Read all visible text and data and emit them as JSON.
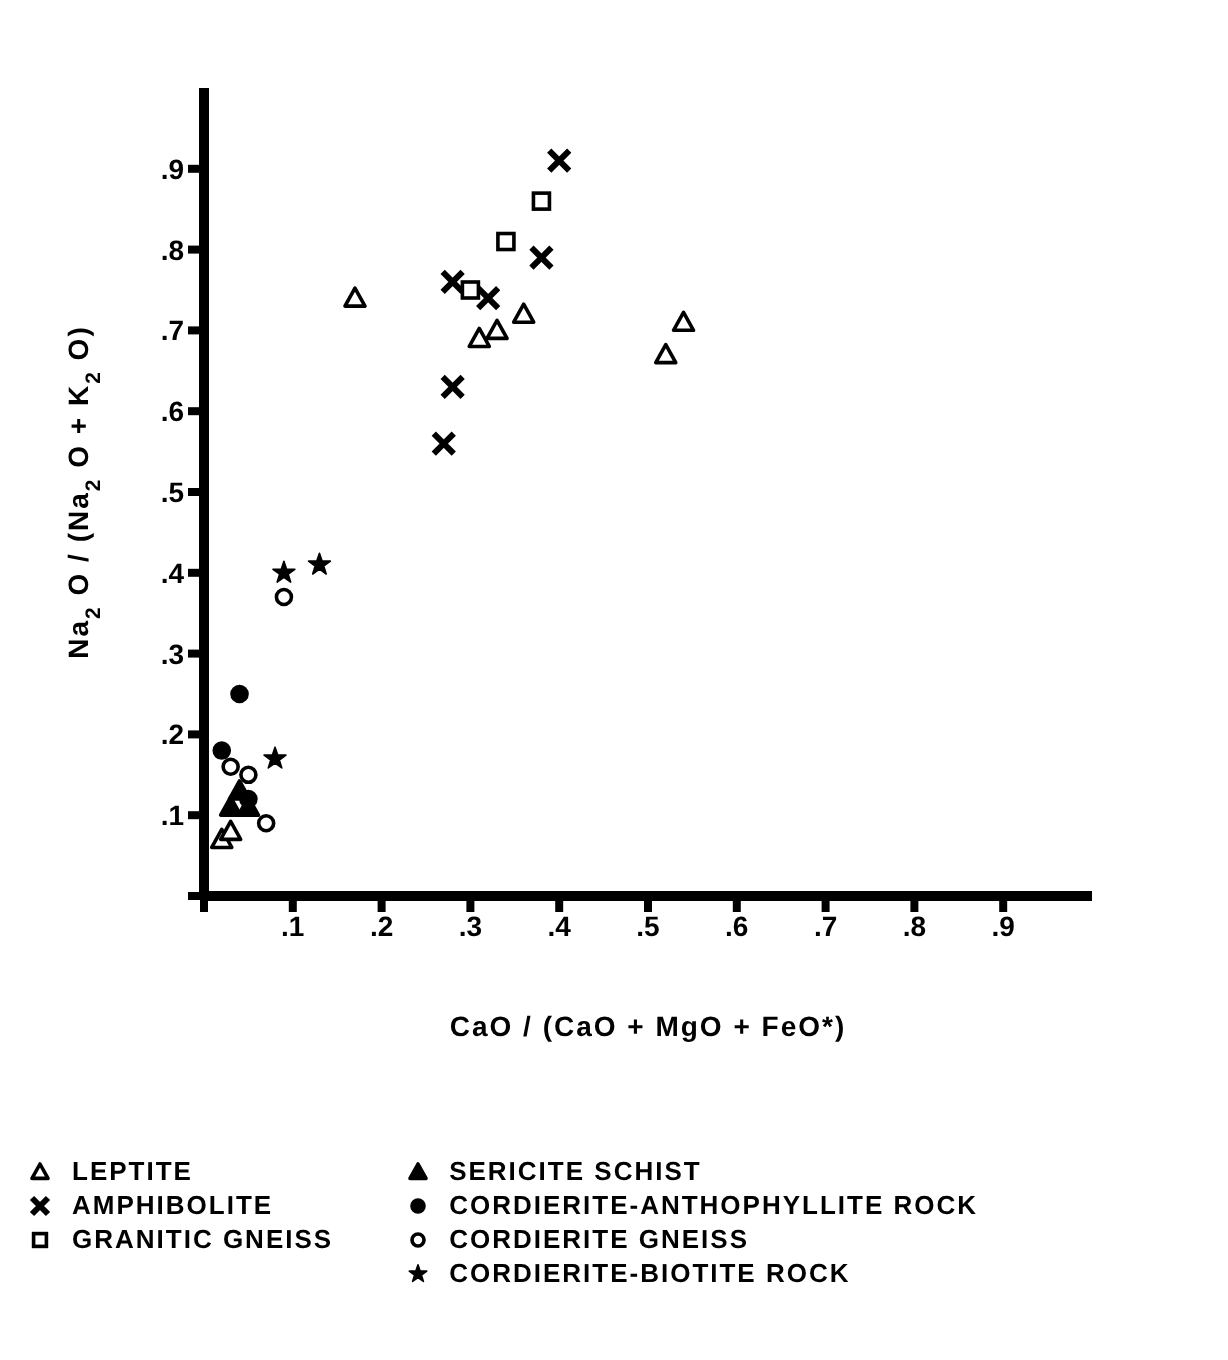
{
  "chart_data": {
    "type": "scatter",
    "xlabel": "CaO / (CaO + MgO + FeO*)",
    "ylabel": "Na$_{2}$O / (Na$_{2}$O + K$_{2}$O)",
    "xlim": [
      0,
      1
    ],
    "ylim": [
      0,
      1
    ],
    "xticks": [
      {
        "value": 0,
        "label": null
      },
      {
        "value": 0.1,
        "label": ".1"
      },
      {
        "value": 0.2,
        "label": ".2"
      },
      {
        "value": 0.3,
        "label": ".3"
      },
      {
        "value": 0.4,
        "label": ".4"
      },
      {
        "value": 0.5,
        "label": ".5"
      },
      {
        "value": 0.6,
        "label": ".6"
      },
      {
        "value": 0.7,
        "label": ".7"
      },
      {
        "value": 0.8,
        "label": ".8"
      },
      {
        "value": 0.9,
        "label": ".9"
      }
    ],
    "yticks": [
      {
        "value": 0,
        "label": null
      },
      {
        "value": 0.1,
        "label": ".1"
      },
      {
        "value": 0.2,
        "label": ".2"
      },
      {
        "value": 0.3,
        "label": ".3"
      },
      {
        "value": 0.4,
        "label": ".4"
      },
      {
        "value": 0.5,
        "label": ".5"
      },
      {
        "value": 0.6,
        "label": ".6"
      },
      {
        "value": 0.7,
        "label": ".7"
      },
      {
        "value": 0.8,
        "label": ".8"
      },
      {
        "value": 0.9,
        "label": ".9"
      }
    ],
    "grid": false,
    "legend": "bottom",
    "series": [
      {
        "name": "LEPTITE",
        "color": "#ffffff",
        "marker": "triangle",
        "x": [
          0.17,
          0.31,
          0.33,
          0.36,
          0.52,
          0.54,
          0.02,
          0.03
        ],
        "values": [
          0.74,
          0.69,
          0.7,
          0.72,
          0.67,
          0.71,
          0.07,
          0.08
        ]
      },
      {
        "name": "AMPHIBOLITE",
        "color": "#000000",
        "marker": "cross",
        "x": [
          0.4,
          0.38,
          0.28,
          0.32,
          0.28,
          0.27
        ],
        "values": [
          0.91,
          0.79,
          0.76,
          0.74,
          0.63,
          0.56
        ]
      },
      {
        "name": "GRANITIC GNEISS",
        "color": "#ffffff",
        "marker": "square",
        "x": [
          0.38,
          0.34,
          0.3
        ],
        "values": [
          0.86,
          0.81,
          0.75
        ]
      },
      {
        "name": "SERICITE SCHIST",
        "color": "#000000",
        "marker": "triangle",
        "x": [
          0.03,
          0.04,
          0.05
        ],
        "values": [
          0.11,
          0.13,
          0.11
        ]
      },
      {
        "name": "CORDIERITE-ANTHOPHYLLITE ROCK",
        "color": "#000000",
        "marker": "circle",
        "x": [
          0.02,
          0.04,
          0.05
        ],
        "values": [
          0.18,
          0.25,
          0.12
        ]
      },
      {
        "name": "CORDIERITE GNEISS",
        "color": "#ffffff",
        "marker": "circle",
        "x": [
          0.09,
          0.03,
          0.05,
          0.07
        ],
        "values": [
          0.37,
          0.16,
          0.15,
          0.09
        ]
      },
      {
        "name": "CORDIERITE-BIOTITE ROCK",
        "color": "#000000",
        "marker": "star",
        "x": [
          0.09,
          0.13,
          0.08
        ],
        "values": [
          0.4,
          0.41,
          0.17
        ]
      }
    ]
  }
}
